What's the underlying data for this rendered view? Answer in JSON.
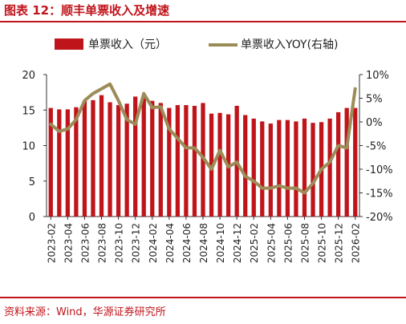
{
  "title": "图表 12：顺丰单票收入及增速",
  "source": "资料来源：Wind，华源证券研究所",
  "colors": {
    "bar": "#c0141b",
    "line": "#9c8c58",
    "accent": "#c0141b"
  },
  "chart_data": {
    "type": "bar",
    "categories": [
      "2023-02",
      "2023-03",
      "2023-04",
      "2023-05",
      "2023-06",
      "2023-07",
      "2023-08",
      "2023-09",
      "2023-10",
      "2023-11",
      "2023-12",
      "2024-01",
      "2024-02",
      "2024-03",
      "2024-04",
      "2024-05",
      "2024-06",
      "2024-07",
      "2024-08",
      "2024-09",
      "2024-10",
      "2024-11",
      "2024-12",
      "2025-01",
      "2025-02",
      "2025-03",
      "2025-04",
      "2025-05",
      "2025-06",
      "2025-07",
      "2025-08",
      "2025-09",
      "2025-10",
      "2025-11",
      "2025-12",
      "2026-01",
      "2026-02"
    ],
    "xtick_labels": [
      "2023-02",
      "2023-04",
      "2023-06",
      "2023-08",
      "2023-10",
      "2023-12",
      "2024-02",
      "2024-04",
      "2024-06",
      "2024-08",
      "2024-10",
      "2024-12",
      "2025-02",
      "2025-04",
      "2025-06",
      "2025-08",
      "2025-10",
      "2025-12",
      "2026-02"
    ],
    "series": [
      {
        "name": "单票收入（元）",
        "type": "bar",
        "axis": "left",
        "values": [
          15.3,
          15.1,
          15.1,
          15.4,
          16.3,
          16.4,
          17.1,
          16.1,
          15.7,
          15.9,
          16.9,
          16.7,
          16.3,
          16.0,
          15.3,
          15.7,
          15.7,
          15.6,
          16.0,
          14.5,
          14.6,
          14.4,
          15.6,
          14.3,
          13.8,
          13.4,
          13.1,
          13.6,
          13.6,
          13.4,
          13.8,
          13.2,
          13.3,
          13.8,
          14.7,
          15.3,
          15.3
        ]
      },
      {
        "name": "单票收入YOY(右轴)",
        "type": "line",
        "axis": "right",
        "values": [
          -0.5,
          -2.0,
          -1.5,
          0.5,
          4.5,
          6.0,
          7.0,
          8.0,
          4.5,
          0.5,
          -0.5,
          6.0,
          3.0,
          3.2,
          -1.5,
          -3.5,
          -5.5,
          -5.5,
          -7.5,
          -10.0,
          -6.0,
          -9.5,
          -8.5,
          -11.5,
          -12.5,
          -14.0,
          -14.0,
          -13.5,
          -14.0,
          -14.0,
          -15.0,
          -13.0,
          -10.0,
          -8.5,
          -5.0,
          -5.5,
          7.0
        ]
      }
    ],
    "y_left": {
      "min": 0,
      "max": 20,
      "ticks": [
        "0",
        "5",
        "10",
        "15",
        "20"
      ]
    },
    "y_right": {
      "min": -20,
      "max": 10,
      "ticks": [
        "10%",
        "5%",
        "0%",
        "-5%",
        "-10%",
        "-15%",
        "-20%"
      ]
    },
    "legend_position": "top"
  }
}
